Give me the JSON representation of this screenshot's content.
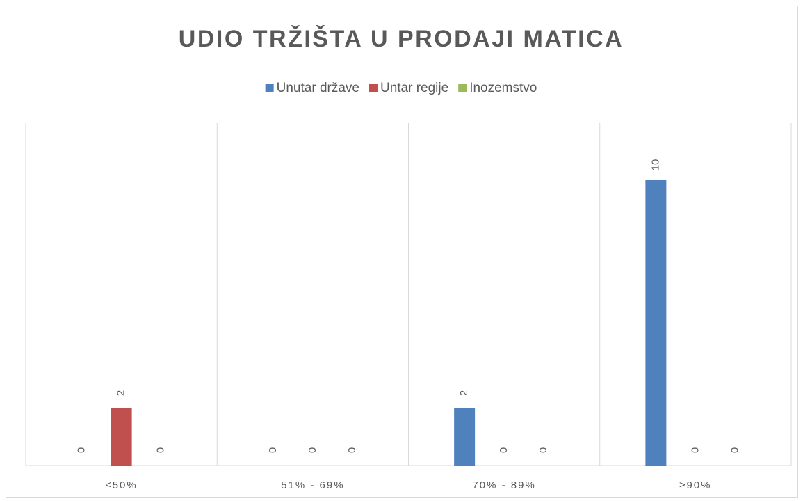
{
  "chart_data": {
    "type": "bar",
    "title": "UDIO TRŽIŠTA U PRODAJI MATICA",
    "categories": [
      "≤50%",
      "51% - 69%",
      "70% - 89%",
      "≥90%"
    ],
    "series": [
      {
        "name": "Unutar države",
        "color": "#4f81bd",
        "values": [
          0,
          0,
          2,
          10
        ]
      },
      {
        "name": "Untar regije",
        "color": "#c0504d",
        "values": [
          2,
          0,
          0,
          0
        ]
      },
      {
        "name": "Inozemstvo",
        "color": "#9bbb59",
        "values": [
          0,
          0,
          0,
          0
        ]
      }
    ],
    "ylim": [
      0,
      12
    ],
    "legend": "top"
  }
}
